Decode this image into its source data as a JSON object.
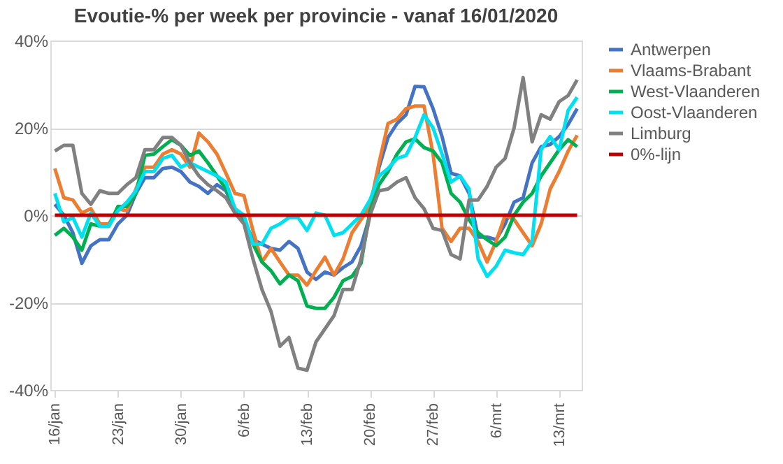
{
  "chart_data": {
    "type": "line",
    "title": "Evoutie-% per week per provincie - vanaf 16/01/2020",
    "categories": [
      "16/jan",
      null,
      null,
      null,
      null,
      null,
      null,
      "23/jan",
      null,
      null,
      null,
      null,
      null,
      null,
      "30/jan",
      null,
      null,
      null,
      null,
      null,
      null,
      "6/feb",
      null,
      null,
      null,
      null,
      null,
      null,
      "13/feb",
      null,
      null,
      null,
      null,
      null,
      null,
      "20/feb",
      null,
      null,
      null,
      null,
      null,
      null,
      "27/feb",
      null,
      null,
      null,
      null,
      null,
      null,
      "6/mrt",
      null,
      null,
      null,
      null,
      null,
      null,
      "13/mrt",
      null,
      null
    ],
    "series": [
      {
        "name": "Antwerpen",
        "color": "#4472c4",
        "values": [
          2.5,
          0,
          -4,
          -11,
          -7,
          -5.6,
          -5.6,
          -2,
          0,
          5,
          8.6,
          8.6,
          10.7,
          11,
          10,
          7.6,
          6.6,
          5,
          7,
          5.6,
          1,
          -1,
          -5.6,
          -6.6,
          -7.6,
          -8,
          -6,
          -7.6,
          -13,
          -14.7,
          -13,
          -13.7,
          -12,
          -10.7,
          -7,
          0,
          11,
          17.8,
          21,
          23,
          29.5,
          29.4,
          24.4,
          18,
          9.6,
          9,
          5,
          -5,
          -5,
          -5.6,
          -2,
          3,
          4,
          12,
          15.7,
          16.2,
          18,
          20.8,
          24.4
        ]
      },
      {
        "name": "Vlaams-Brabant",
        "color": "#ed7d31",
        "values": [
          10.7,
          4,
          3.5,
          0.5,
          1.5,
          -2,
          -2,
          1.5,
          1,
          6,
          11,
          11,
          14,
          15,
          14,
          11,
          18.8,
          16.8,
          14,
          9.6,
          5,
          4.5,
          -3.5,
          -10.7,
          -7.6,
          -10.7,
          -13.7,
          -13.7,
          -16,
          -12.7,
          -9.6,
          -13.7,
          -10,
          -4,
          -1,
          2,
          12,
          21,
          22,
          24.4,
          25,
          25,
          14,
          -3,
          -6,
          -3,
          -3,
          -6,
          -10.7,
          -6,
          0,
          -1,
          -4,
          -7,
          -2,
          6,
          10,
          14.7,
          18.3
        ]
      },
      {
        "name": "West-Vlaanderen",
        "color": "#00b050",
        "values": [
          -4.6,
          -3,
          -5,
          -8,
          -2,
          -2.5,
          -2.5,
          2,
          2,
          5,
          13.7,
          14,
          15.7,
          17.3,
          16,
          13.7,
          14.7,
          12,
          9,
          6,
          1.5,
          -1.5,
          -6.6,
          -10.7,
          -12.7,
          -15.7,
          -13.7,
          -15,
          -20.8,
          -21.3,
          -21.3,
          -18.8,
          -15,
          -14,
          -11,
          1,
          7,
          10,
          14,
          16.8,
          17.5,
          15.5,
          14.7,
          12,
          5,
          3,
          -1,
          -4,
          -5.6,
          -7,
          -5,
          0,
          3,
          5,
          9,
          12,
          15,
          17.3,
          15.7
        ]
      },
      {
        "name": "Oost-Vlaanderen",
        "color": "#00e0f0",
        "values": [
          5,
          -1.5,
          -0.5,
          -5,
          0.5,
          -2.5,
          -2.5,
          1,
          3,
          5.6,
          10,
          10,
          13,
          13.7,
          11,
          12,
          11,
          10,
          9,
          7.6,
          1.5,
          0,
          -6.6,
          -6.6,
          -3,
          -2,
          -0.5,
          -0.5,
          -3.5,
          0.5,
          0,
          -4.6,
          -4,
          -2,
          0,
          3.5,
          9,
          10.7,
          13,
          13.7,
          17.8,
          23,
          20,
          14,
          7.6,
          9,
          6,
          -10,
          -14,
          -11.7,
          -8,
          -8.6,
          -9,
          -6,
          15,
          18,
          15,
          24,
          27
        ]
      },
      {
        "name": "Limburg",
        "color": "#808080",
        "values": [
          14.7,
          16,
          16,
          5,
          2.5,
          5.6,
          5,
          5,
          7,
          8.6,
          15,
          15,
          17.8,
          17.8,
          16,
          12,
          9,
          7,
          5.6,
          4,
          0.5,
          -2,
          -10,
          -17,
          -22,
          -30,
          -28,
          -35,
          -35.5,
          -29,
          -26,
          -23,
          -17,
          -17,
          -10,
          0,
          5.6,
          6,
          7.6,
          8.6,
          4,
          1.5,
          -3,
          -3.5,
          -9,
          -10,
          3.5,
          3.5,
          6.6,
          11,
          13,
          20,
          31.5,
          16.8,
          23,
          22,
          26,
          27.4,
          31
        ]
      },
      {
        "name": "0%-lijn",
        "color": "#c00000",
        "values": [
          0,
          0,
          0,
          0,
          0,
          0,
          0,
          0,
          0,
          0,
          0,
          0,
          0,
          0,
          0,
          0,
          0,
          0,
          0,
          0,
          0,
          0,
          0,
          0,
          0,
          0,
          0,
          0,
          0,
          0,
          0,
          0,
          0,
          0,
          0,
          0,
          0,
          0,
          0,
          0,
          0,
          0,
          0,
          0,
          0,
          0,
          0,
          0,
          0,
          0,
          0,
          0,
          0,
          0,
          0,
          0,
          0,
          0,
          0
        ]
      }
    ],
    "ylim": [
      -40,
      40
    ],
    "yticks": [
      {
        "value": -40,
        "label": "-40%"
      },
      {
        "value": -20,
        "label": "-20%"
      },
      {
        "value": 0,
        "label": "0%"
      },
      {
        "value": 20,
        "label": "20%"
      },
      {
        "value": 40,
        "label": "40%"
      }
    ],
    "grid": "y",
    "legend": "right",
    "line_style": "solid"
  }
}
